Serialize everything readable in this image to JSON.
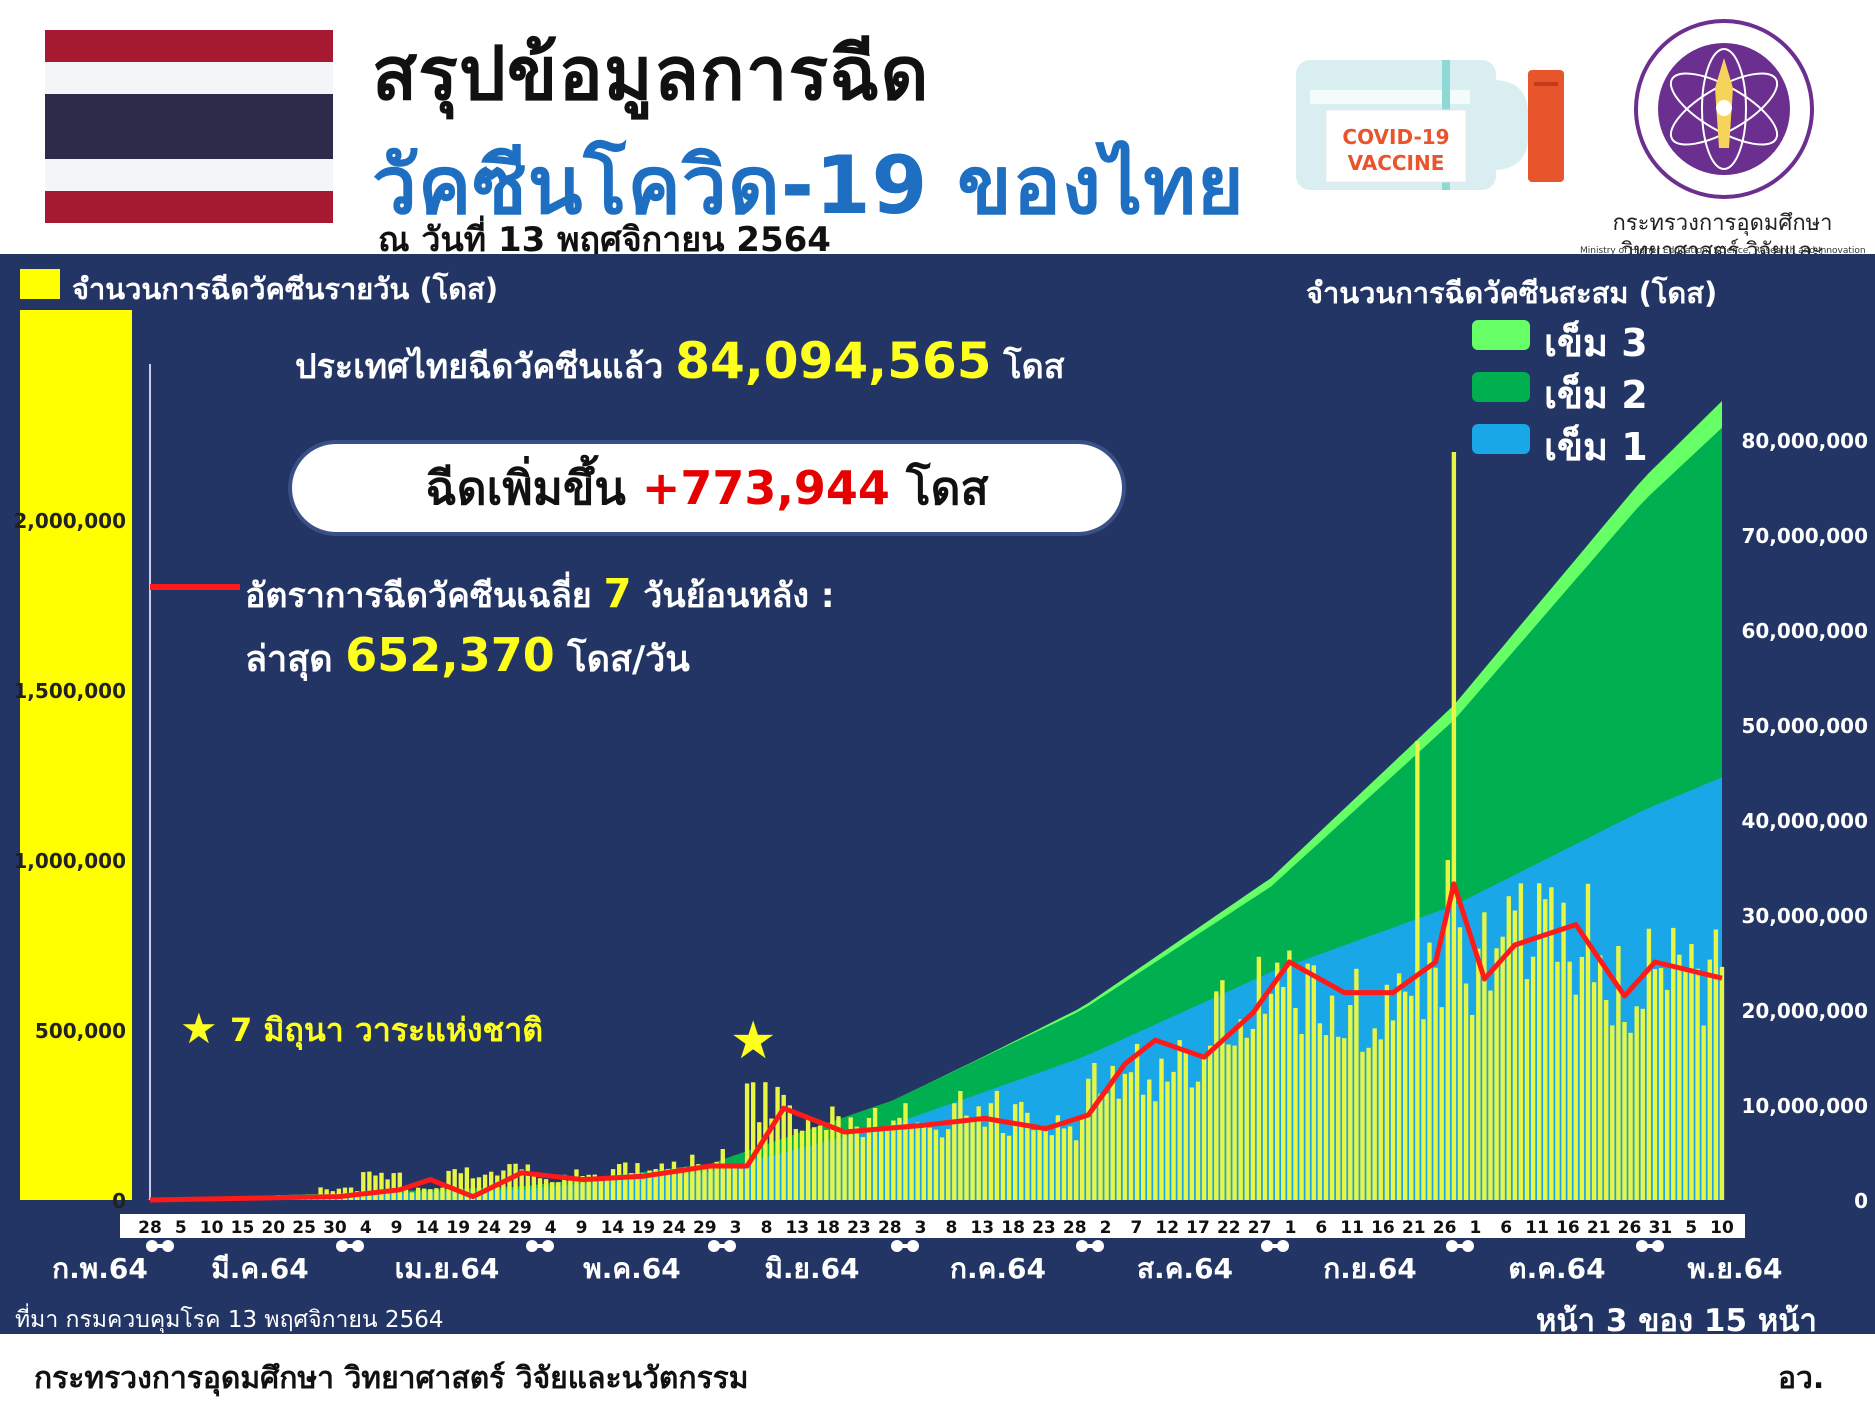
{
  "header": {
    "title_line1": "สรุปข้อมูลการฉีด",
    "title_line2": "วัคซีนโควิด-19 ของไทย",
    "date_line": "ณ วันที่ 13 พฤศจิกายน 2564",
    "vial_text": "COVID-19 VACCINE",
    "ministry_th_line1": "กระทรวงการอุดมศึกษา",
    "ministry_th_line2": "วิทยาศาสตร์ วิจัยและนวัตกรรม",
    "ministry_en": "Ministry of Higher Education, Science, Research and Innovation"
  },
  "colors": {
    "panel_bg": "#233564",
    "daily_bar": "#e8f545",
    "dose1": "#1aa7e8",
    "dose2": "#00b050",
    "dose3": "#66ff66",
    "moving_avg": "#ff1a1a",
    "highlight_yellow": "#ffff1e",
    "increase_red": "#e60000",
    "title_blue": "#1e6fc2"
  },
  "panel": {
    "daily_label": "จำนวนการฉีดวัคซีนรายวัน (โดส)",
    "cumulative_label": "จำนวนการฉีดวัคซีนสะสม (โดส)",
    "total_prefix": "ประเทศไทยฉีดวัคซีนแล้ว",
    "total_value": "84,094,565",
    "total_unit": "โดส",
    "increase_prefix": "ฉีดเพิ่มขึ้น",
    "increase_value": "+773,944",
    "increase_unit": "โดส",
    "avg_label_prefix": "อัตราการฉีดวัคซีนเฉลี่ย",
    "avg_days": "7",
    "avg_label_suffix": "วันย้อนหลัง :",
    "avg_latest_prefix": "ล่าสุด",
    "avg_latest_value": "652,370",
    "avg_latest_unit": "โดส/วัน",
    "star_note": "7 มิถุนา วาระแห่งชาติ",
    "source": "ที่มา กรมควบคุมโรค 13 พฤศจิกายน 2564",
    "page_indicator": "หน้า 3 ของ 15 หน้า"
  },
  "legend": [
    {
      "label": "เข็ม 3",
      "color": "#66ff66"
    },
    {
      "label": "เข็ม 2",
      "color": "#00b050"
    },
    {
      "label": "เข็ม 1",
      "color": "#1aa7e8"
    }
  ],
  "footer": {
    "org": "กระทรวงการอุดมศึกษา วิทยาศาสตร์ วิจัยและนวัตกรรม",
    "abbr": "อว."
  },
  "chart_data": {
    "type": "bar",
    "left_axis": {
      "label": "จำนวนการฉีดวัคซีนรายวัน (โดส)",
      "ylim": [
        0,
        2000000
      ],
      "tick_values": [
        0,
        500000,
        1000000,
        1500000,
        2000000
      ],
      "tick_labels": [
        "0",
        "500,000",
        "1,000,000",
        "1,500,000",
        "2,000,000"
      ]
    },
    "right_axis": {
      "label": "จำนวนการฉีดวัคซีนสะสม (โดส)",
      "ylim": [
        0,
        80000000
      ],
      "tick_values": [
        0,
        10000000,
        20000000,
        30000000,
        40000000,
        50000000,
        60000000,
        70000000,
        80000000
      ],
      "tick_labels": [
        "0",
        "10,000,000",
        "20,000,000",
        "30,000,000",
        "40,000,000",
        "50,000,000",
        "60,000,000",
        "70,000,000",
        "80,000,000"
      ]
    },
    "x_day_ticks": [
      "28",
      "5",
      "10",
      "15",
      "20",
      "25",
      "30",
      "4",
      "9",
      "14",
      "19",
      "24",
      "29",
      "4",
      "9",
      "14",
      "19",
      "24",
      "29",
      "3",
      "8",
      "13",
      "18",
      "23",
      "28",
      "3",
      "8",
      "13",
      "18",
      "23",
      "28",
      "2",
      "7",
      "12",
      "17",
      "22",
      "27",
      "1",
      "6",
      "11",
      "16",
      "21",
      "26",
      "1",
      "6",
      "11",
      "16",
      "21",
      "26",
      "31",
      "5",
      "10"
    ],
    "x_month_labels": [
      "ก.พ.64",
      "มี.ค.64",
      "เม.ย.64",
      "พ.ค.64",
      "มิ.ย.64",
      "ก.ค.64",
      "ส.ค.64",
      "ก.ย.64",
      "ต.ค.64",
      "พ.ย.64"
    ],
    "date_range": [
      "2021-02-28",
      "2021-11-13"
    ],
    "marker": {
      "date": "2021-06-07",
      "label": "7 มิถุนา วาระแห่งชาติ"
    },
    "daily_doses_weekly_approx": [
      {
        "week_start": "2021-02-28",
        "value": 1000
      },
      {
        "week_start": "2021-03-07",
        "value": 5000
      },
      {
        "week_start": "2021-03-14",
        "value": 8000
      },
      {
        "week_start": "2021-03-21",
        "value": 12000
      },
      {
        "week_start": "2021-03-28",
        "value": 30000
      },
      {
        "week_start": "2021-04-04",
        "value": 70000
      },
      {
        "week_start": "2021-04-11",
        "value": 30000
      },
      {
        "week_start": "2021-04-18",
        "value": 80000
      },
      {
        "week_start": "2021-04-25",
        "value": 90000
      },
      {
        "week_start": "2021-05-02",
        "value": 65000
      },
      {
        "week_start": "2021-05-09",
        "value": 75000
      },
      {
        "week_start": "2021-05-16",
        "value": 90000
      },
      {
        "week_start": "2021-05-23",
        "value": 110000
      },
      {
        "week_start": "2021-05-30",
        "value": 120000
      },
      {
        "week_start": "2021-06-06",
        "value": 300000
      },
      {
        "week_start": "2021-06-13",
        "value": 250000
      },
      {
        "week_start": "2021-06-20",
        "value": 220000
      },
      {
        "week_start": "2021-06-27",
        "value": 230000
      },
      {
        "week_start": "2021-07-04",
        "value": 240000
      },
      {
        "week_start": "2021-07-11",
        "value": 260000
      },
      {
        "week_start": "2021-07-18",
        "value": 240000
      },
      {
        "week_start": "2021-07-25",
        "value": 220000
      },
      {
        "week_start": "2021-08-01",
        "value": 350000
      },
      {
        "week_start": "2021-08-08",
        "value": 380000
      },
      {
        "week_start": "2021-08-15",
        "value": 420000
      },
      {
        "week_start": "2021-08-22",
        "value": 520000
      },
      {
        "week_start": "2021-08-29",
        "value": 650000
      },
      {
        "week_start": "2021-09-05",
        "value": 600000
      },
      {
        "week_start": "2021-09-12",
        "value": 580000
      },
      {
        "week_start": "2021-09-19",
        "value": 600000
      },
      {
        "week_start": "2021-09-26",
        "value": 700000
      },
      {
        "week_start": "2021-10-03",
        "value": 720000
      },
      {
        "week_start": "2021-10-10",
        "value": 780000
      },
      {
        "week_start": "2021-10-17",
        "value": 760000
      },
      {
        "week_start": "2021-10-24",
        "value": 640000
      },
      {
        "week_start": "2021-10-31",
        "value": 680000
      },
      {
        "week_start": "2021-11-07",
        "value": 660000
      }
    ],
    "daily_peaks": [
      {
        "date": "2021-09-30",
        "value": 2200000
      },
      {
        "date": "2021-09-29",
        "value": 1000000
      },
      {
        "date": "2021-09-24",
        "value": 1350000
      }
    ],
    "moving_avg_7d": [
      {
        "date": "2021-02-28",
        "value": 0
      },
      {
        "date": "2021-03-31",
        "value": 10000
      },
      {
        "date": "2021-04-10",
        "value": 30000
      },
      {
        "date": "2021-04-15",
        "value": 60000
      },
      {
        "date": "2021-04-22",
        "value": 10000
      },
      {
        "date": "2021-04-30",
        "value": 80000
      },
      {
        "date": "2021-05-10",
        "value": 60000
      },
      {
        "date": "2021-05-20",
        "value": 70000
      },
      {
        "date": "2021-05-31",
        "value": 100000
      },
      {
        "date": "2021-06-06",
        "value": 100000
      },
      {
        "date": "2021-06-12",
        "value": 270000
      },
      {
        "date": "2021-06-22",
        "value": 200000
      },
      {
        "date": "2021-07-05",
        "value": 220000
      },
      {
        "date": "2021-07-15",
        "value": 240000
      },
      {
        "date": "2021-07-25",
        "value": 210000
      },
      {
        "date": "2021-08-01",
        "value": 250000
      },
      {
        "date": "2021-08-07",
        "value": 400000
      },
      {
        "date": "2021-08-12",
        "value": 470000
      },
      {
        "date": "2021-08-20",
        "value": 420000
      },
      {
        "date": "2021-08-28",
        "value": 550000
      },
      {
        "date": "2021-09-03",
        "value": 700000
      },
      {
        "date": "2021-09-12",
        "value": 610000
      },
      {
        "date": "2021-09-20",
        "value": 610000
      },
      {
        "date": "2021-09-27",
        "value": 700000
      },
      {
        "date": "2021-09-30",
        "value": 930000
      },
      {
        "date": "2021-10-05",
        "value": 650000
      },
      {
        "date": "2021-10-10",
        "value": 750000
      },
      {
        "date": "2021-10-20",
        "value": 810000
      },
      {
        "date": "2021-10-28",
        "value": 600000
      },
      {
        "date": "2021-11-02",
        "value": 700000
      },
      {
        "date": "2021-11-13",
        "value": 652370
      }
    ],
    "series": [
      {
        "name": "เข็ม 1",
        "cumulative": [
          {
            "date": "2021-02-28",
            "value": 0
          },
          {
            "date": "2021-04-30",
            "value": 1100000
          },
          {
            "date": "2021-05-31",
            "value": 3000000
          },
          {
            "date": "2021-06-30",
            "value": 8000000
          },
          {
            "date": "2021-07-31",
            "value": 15000000
          },
          {
            "date": "2021-08-31",
            "value": 24000000
          },
          {
            "date": "2021-09-30",
            "value": 31000000
          },
          {
            "date": "2021-10-31",
            "value": 41000000
          },
          {
            "date": "2021-11-13",
            "value": 44500000
          }
        ]
      },
      {
        "name": "เข็ม 2",
        "cumulative": [
          {
            "date": "2021-02-28",
            "value": 0
          },
          {
            "date": "2021-04-30",
            "value": 300000
          },
          {
            "date": "2021-05-31",
            "value": 800000
          },
          {
            "date": "2021-06-30",
            "value": 2500000
          },
          {
            "date": "2021-07-31",
            "value": 5000000
          },
          {
            "date": "2021-08-31",
            "value": 9000000
          },
          {
            "date": "2021-09-30",
            "value": 19500000
          },
          {
            "date": "2021-10-31",
            "value": 32500000
          },
          {
            "date": "2021-11-13",
            "value": 36800000
          }
        ]
      },
      {
        "name": "เข็ม 3",
        "cumulative": [
          {
            "date": "2021-02-28",
            "value": 0
          },
          {
            "date": "2021-06-30",
            "value": 0
          },
          {
            "date": "2021-07-15",
            "value": 50000
          },
          {
            "date": "2021-07-31",
            "value": 300000
          },
          {
            "date": "2021-08-31",
            "value": 900000
          },
          {
            "date": "2021-09-30",
            "value": 1600000
          },
          {
            "date": "2021-10-31",
            "value": 2400000
          },
          {
            "date": "2021-11-13",
            "value": 2800000
          }
        ]
      }
    ],
    "total_cumulative": 84094565,
    "increase_today": 773944,
    "moving_avg_latest": 652370
  }
}
